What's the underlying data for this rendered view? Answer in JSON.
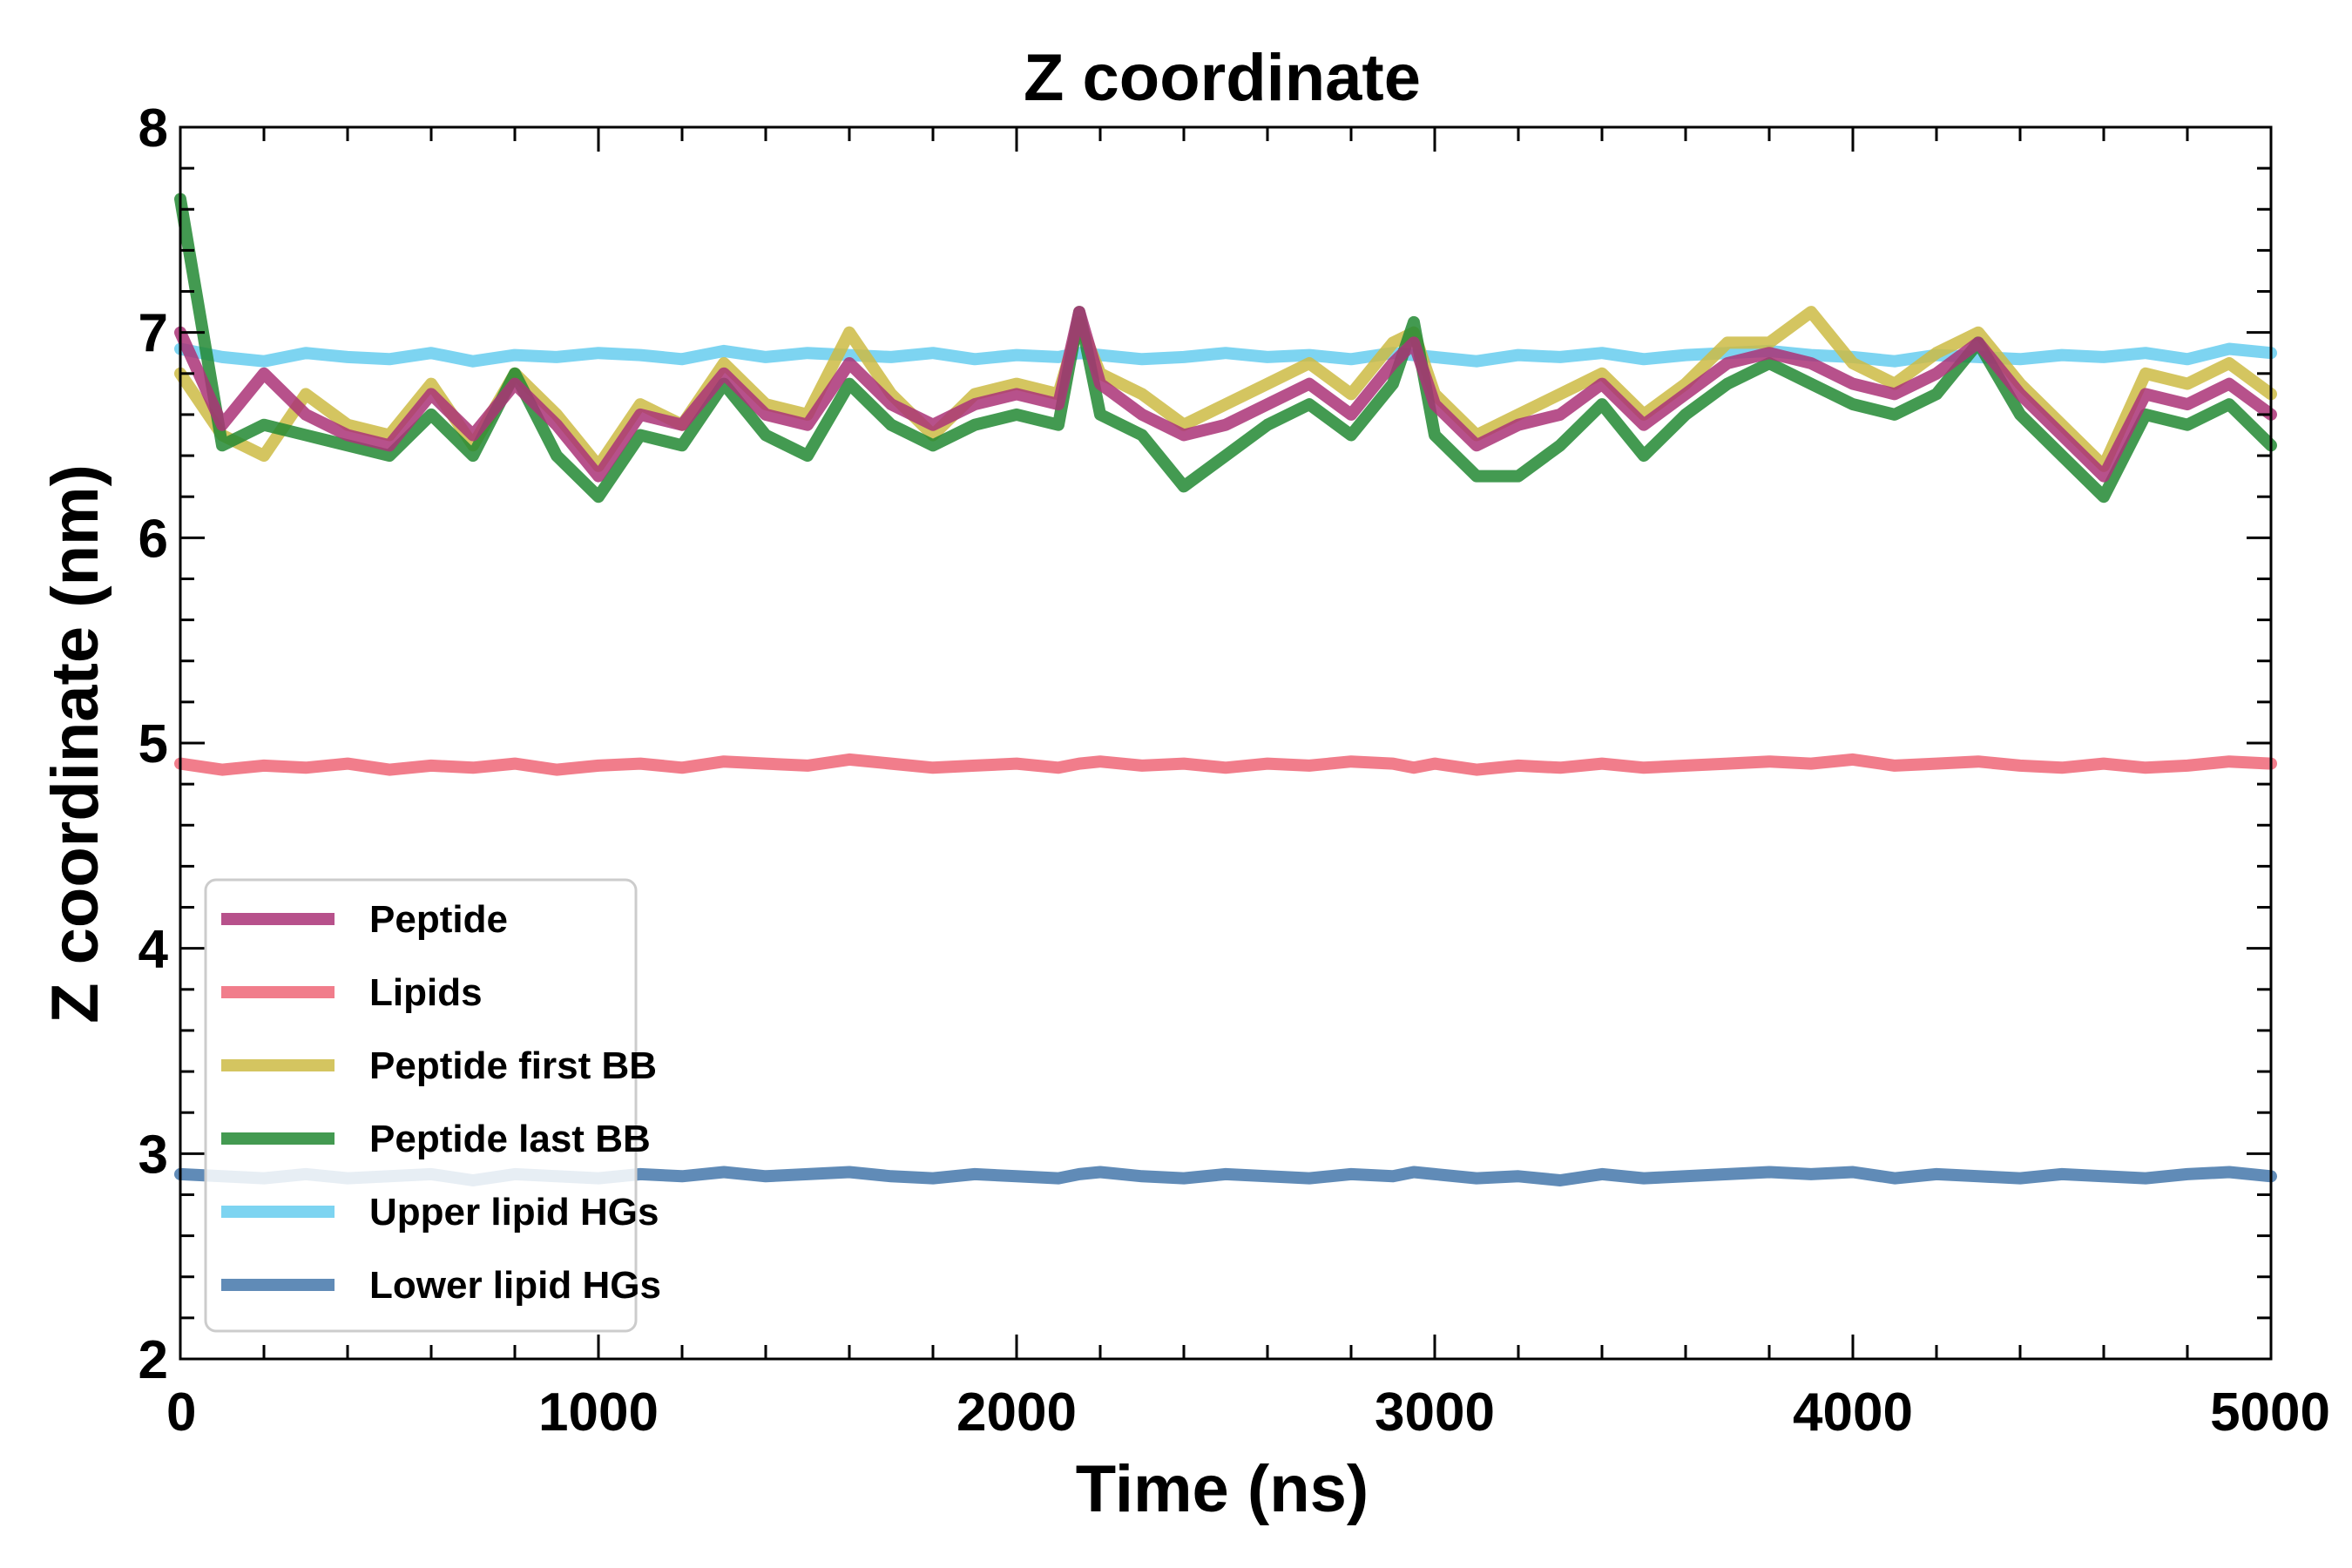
{
  "chart_data": {
    "type": "line",
    "title": "Z coordinate",
    "xlabel": "Time (ns)",
    "ylabel": "Z coordinate (nm)",
    "xlim": [
      0,
      5000
    ],
    "ylim": [
      2,
      8
    ],
    "xticks": [
      0,
      1000,
      2000,
      3000,
      4000,
      5000
    ],
    "yticks": [
      2,
      3,
      4,
      5,
      6,
      7,
      8
    ],
    "grid": false,
    "legend_position": "lower-left",
    "x": [
      0,
      100,
      200,
      300,
      400,
      500,
      600,
      700,
      800,
      900,
      1000,
      1100,
      1200,
      1300,
      1400,
      1500,
      1600,
      1700,
      1800,
      1900,
      2000,
      2100,
      2150,
      2200,
      2300,
      2400,
      2500,
      2600,
      2700,
      2800,
      2900,
      2950,
      3000,
      3100,
      3200,
      3300,
      3400,
      3500,
      3600,
      3700,
      3800,
      3900,
      4000,
      4100,
      4200,
      4300,
      4400,
      4500,
      4600,
      4700,
      4800,
      4900,
      5000
    ],
    "series": [
      {
        "name": "Peptide",
        "color": "#aa3377",
        "values": [
          7.0,
          6.55,
          6.8,
          6.6,
          6.5,
          6.45,
          6.7,
          6.5,
          6.75,
          6.55,
          6.3,
          6.6,
          6.55,
          6.8,
          6.6,
          6.55,
          6.85,
          6.65,
          6.55,
          6.65,
          6.7,
          6.65,
          7.1,
          6.75,
          6.6,
          6.5,
          6.55,
          6.65,
          6.75,
          6.6,
          6.85,
          6.95,
          6.65,
          6.45,
          6.55,
          6.6,
          6.75,
          6.55,
          6.7,
          6.85,
          6.9,
          6.85,
          6.75,
          6.7,
          6.8,
          6.95,
          6.7,
          6.5,
          6.3,
          6.7,
          6.65,
          6.75,
          6.6
        ]
      },
      {
        "name": "Lipids",
        "color": "#ee6677",
        "values": [
          4.9,
          4.87,
          4.89,
          4.88,
          4.9,
          4.87,
          4.89,
          4.88,
          4.9,
          4.87,
          4.89,
          4.9,
          4.88,
          4.91,
          4.9,
          4.89,
          4.92,
          4.9,
          4.88,
          4.89,
          4.9,
          4.88,
          4.9,
          4.91,
          4.89,
          4.9,
          4.88,
          4.9,
          4.89,
          4.91,
          4.9,
          4.88,
          4.9,
          4.87,
          4.89,
          4.88,
          4.9,
          4.88,
          4.89,
          4.9,
          4.91,
          4.9,
          4.92,
          4.89,
          4.9,
          4.91,
          4.89,
          4.88,
          4.9,
          4.88,
          4.89,
          4.91,
          4.9
        ]
      },
      {
        "name": "Peptide first BB",
        "color": "#ccbb44",
        "values": [
          6.8,
          6.5,
          6.4,
          6.7,
          6.55,
          6.5,
          6.75,
          6.45,
          6.8,
          6.6,
          6.35,
          6.65,
          6.55,
          6.85,
          6.65,
          6.6,
          7.0,
          6.7,
          6.5,
          6.7,
          6.75,
          6.7,
          7.05,
          6.8,
          6.7,
          6.55,
          6.65,
          6.75,
          6.85,
          6.7,
          6.95,
          7.0,
          6.7,
          6.5,
          6.6,
          6.7,
          6.8,
          6.6,
          6.75,
          6.95,
          6.95,
          7.1,
          6.85,
          6.75,
          6.9,
          7.0,
          6.75,
          6.55,
          6.35,
          6.8,
          6.75,
          6.85,
          6.7
        ]
      },
      {
        "name": "Peptide last BB",
        "color": "#228833",
        "values": [
          7.65,
          6.45,
          6.55,
          6.5,
          6.45,
          6.4,
          6.6,
          6.4,
          6.8,
          6.4,
          6.2,
          6.5,
          6.45,
          6.75,
          6.5,
          6.4,
          6.75,
          6.55,
          6.45,
          6.55,
          6.6,
          6.55,
          7.1,
          6.6,
          6.5,
          6.25,
          6.4,
          6.55,
          6.65,
          6.5,
          6.75,
          7.05,
          6.5,
          6.3,
          6.3,
          6.45,
          6.65,
          6.4,
          6.6,
          6.75,
          6.85,
          6.75,
          6.65,
          6.6,
          6.7,
          6.95,
          6.6,
          6.4,
          6.2,
          6.6,
          6.55,
          6.65,
          6.45
        ]
      },
      {
        "name": "Upper lipid HGs",
        "color": "#66ccee",
        "values": [
          6.92,
          6.88,
          6.86,
          6.9,
          6.88,
          6.87,
          6.9,
          6.86,
          6.89,
          6.88,
          6.9,
          6.89,
          6.87,
          6.91,
          6.88,
          6.9,
          6.89,
          6.88,
          6.9,
          6.87,
          6.89,
          6.88,
          6.9,
          6.89,
          6.87,
          6.88,
          6.9,
          6.88,
          6.89,
          6.87,
          6.9,
          6.89,
          6.88,
          6.86,
          6.89,
          6.88,
          6.9,
          6.87,
          6.89,
          6.9,
          6.91,
          6.89,
          6.88,
          6.86,
          6.89,
          6.88,
          6.87,
          6.89,
          6.88,
          6.9,
          6.87,
          6.92,
          6.9
        ]
      },
      {
        "name": "Lower lipid HGs",
        "color": "#4477aa",
        "values": [
          2.9,
          2.89,
          2.88,
          2.9,
          2.88,
          2.89,
          2.9,
          2.87,
          2.9,
          2.89,
          2.88,
          2.9,
          2.89,
          2.91,
          2.89,
          2.9,
          2.91,
          2.89,
          2.88,
          2.9,
          2.89,
          2.88,
          2.9,
          2.91,
          2.89,
          2.88,
          2.9,
          2.89,
          2.88,
          2.9,
          2.89,
          2.91,
          2.9,
          2.88,
          2.89,
          2.87,
          2.9,
          2.88,
          2.89,
          2.9,
          2.91,
          2.9,
          2.91,
          2.88,
          2.9,
          2.89,
          2.88,
          2.9,
          2.89,
          2.88,
          2.9,
          2.91,
          2.89
        ]
      }
    ]
  }
}
